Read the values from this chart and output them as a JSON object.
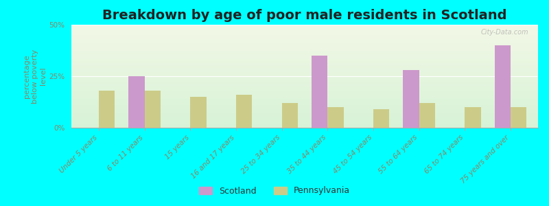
{
  "title": "Breakdown by age of poor male residents in Scotland",
  "categories": [
    "Under 5 years",
    "6 to 11 years",
    "15 years",
    "16 and 17 years",
    "25 to 34 years",
    "35 to 44 years",
    "45 to 54 years",
    "55 to 64 years",
    "65 to 74 years",
    "75 years and over"
  ],
  "scotland_values": [
    0,
    25,
    0,
    0,
    0,
    35,
    0,
    28,
    0,
    40
  ],
  "pennsylvania_values": [
    18,
    18,
    15,
    16,
    12,
    10,
    9,
    12,
    10,
    10
  ],
  "scotland_color": "#cc99cc",
  "pennsylvania_color": "#cccc88",
  "ylabel": "percentage\nbelow poverty\nlevel",
  "ylim": [
    0,
    50
  ],
  "yticks": [
    0,
    25,
    50
  ],
  "ytick_labels": [
    "0%",
    "25%",
    "50%"
  ],
  "background_color": "#00ffff",
  "bar_width": 0.35,
  "title_fontsize": 14,
  "axis_label_fontsize": 8,
  "tick_fontsize": 7.5,
  "legend_labels": [
    "Scotland",
    "Pennsylvania"
  ],
  "watermark": "City-Data.com"
}
